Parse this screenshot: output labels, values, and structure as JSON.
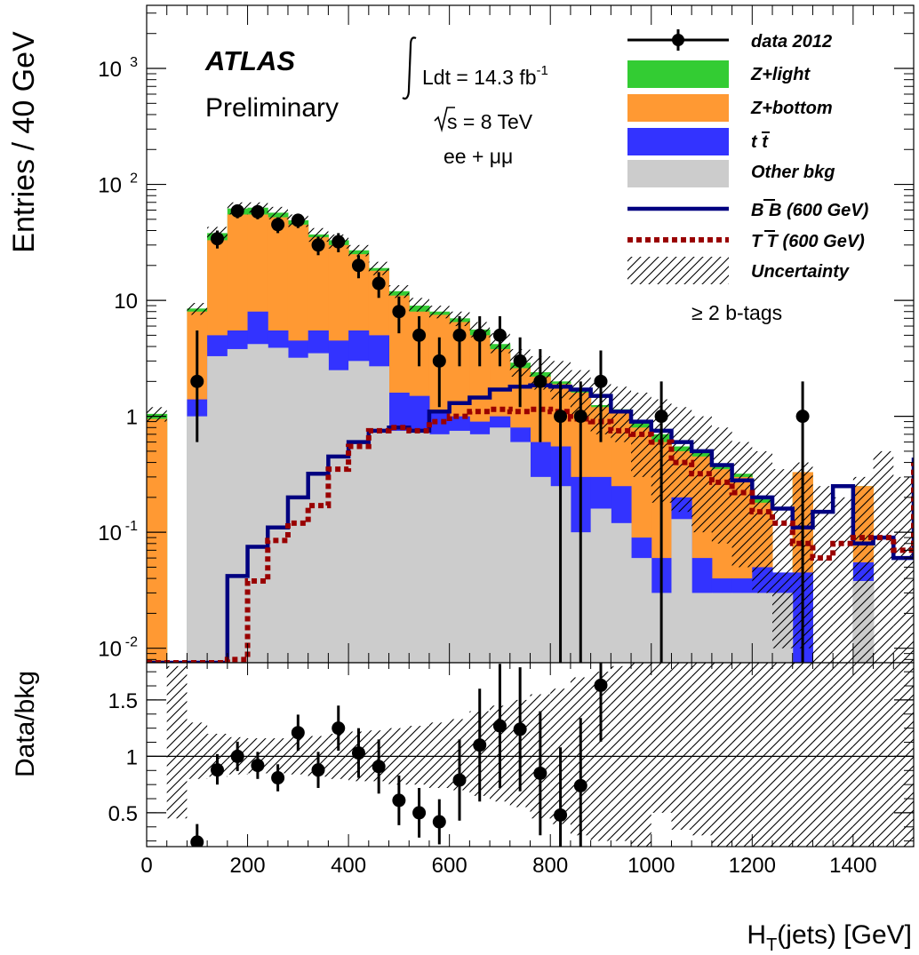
{
  "chart_data": [
    {
      "type": "stacked-histogram",
      "log_y": true,
      "ylabel": "Entries / 40 GeV",
      "ylim": [
        0.0075,
        3500
      ],
      "xlim": [
        0,
        1520
      ],
      "y_ticks": [
        {
          "v": 0.01,
          "b": "10",
          "e": "-2"
        },
        {
          "v": 0.1,
          "b": "10",
          "e": "-1"
        },
        {
          "v": 1,
          "b": "1",
          "e": ""
        },
        {
          "v": 10,
          "b": "10",
          "e": ""
        },
        {
          "v": 100,
          "b": "10",
          "e": "2"
        },
        {
          "v": 1000,
          "b": "10",
          "e": "3"
        }
      ],
      "bin_edges": [
        0,
        40,
        80,
        120,
        160,
        200,
        240,
        280,
        320,
        360,
        400,
        440,
        480,
        520,
        560,
        600,
        640,
        680,
        720,
        760,
        800,
        840,
        880,
        920,
        960,
        1000,
        1040,
        1080,
        1120,
        1160,
        1200,
        1240,
        1280,
        1320,
        1360,
        1400,
        1440,
        1480,
        1520
      ],
      "stack": [
        {
          "name": "Other bkg",
          "color": "#cccccc",
          "values": [
            0.001,
            0.001,
            1,
            3.3,
            3.8,
            4.2,
            3.9,
            3.2,
            3.5,
            2.5,
            3.0,
            2.7,
            0.75,
            0.75,
            0.7,
            0.75,
            0.7,
            0.8,
            0.6,
            0.3,
            0.25,
            0.1,
            0.16,
            0.12,
            0.06,
            0.03,
            0.13,
            0.03,
            0.03,
            0.03,
            0.03,
            0.03,
            0.001,
            0.001,
            0.001,
            0.038,
            0.001,
            0.001,
            0.013
          ]
        },
        {
          "name": "tt",
          "color": "#3333ff",
          "values": [
            0.001,
            0.001,
            1.4,
            5.0,
            5.5,
            8.0,
            5.5,
            4.5,
            5.5,
            4.5,
            5.5,
            5.0,
            1.6,
            1.5,
            1.1,
            1.0,
            0.9,
            1.0,
            0.8,
            0.6,
            0.55,
            0.3,
            0.3,
            0.25,
            0.09,
            0.06,
            0.2,
            0.06,
            0.04,
            0.04,
            0.05,
            0.045,
            0.045,
            0.001,
            0.001,
            0.055,
            0.001,
            0.001,
            0.45
          ]
        },
        {
          "name": "Z+bottom",
          "color": "#ff9933",
          "values": [
            0.95,
            0.001,
            8.0,
            33,
            55,
            55,
            52,
            45,
            35,
            30,
            25,
            18,
            11,
            8,
            7.5,
            6.5,
            5.0,
            3.8,
            2.6,
            2.2,
            1.9,
            1.6,
            1.2,
            1.1,
            0.8,
            0.6,
            0.5,
            0.45,
            0.35,
            0.3,
            0.18,
            0.001,
            0.33,
            0.001,
            0.001,
            0.25,
            0.001,
            0.001,
            0.8
          ]
        },
        {
          "name": "Z+light",
          "color": "#33cc33",
          "values": [
            1.05,
            0.001,
            8.5,
            38,
            62,
            63,
            57,
            49,
            37,
            33,
            27,
            19,
            12,
            9,
            8,
            7,
            5.6,
            4.2,
            2.9,
            2.4,
            2.0,
            1.7,
            1.25,
            1.15,
            0.92,
            0.7,
            0.55,
            0.5,
            0.38,
            0.32,
            0.2,
            0.001,
            0.33,
            0.001,
            0.001,
            0.25,
            0.001,
            0.001,
            0.95
          ]
        }
      ],
      "series": [
        {
          "name": "data 2012",
          "type": "points",
          "x": [
            100,
            140,
            180,
            220,
            260,
            300,
            340,
            380,
            420,
            460,
            500,
            540,
            580,
            620,
            660,
            700,
            740,
            780,
            820,
            860,
            900,
            1020,
            1300
          ],
          "y": [
            2,
            34,
            59,
            58,
            45,
            49,
            30,
            32,
            20,
            14,
            8,
            5,
            3,
            5,
            5,
            5,
            3,
            2,
            1,
            1,
            2,
            1,
            1
          ],
          "err": [
            [
              1.4,
              3.5
            ],
            [
              6,
              6
            ],
            [
              8,
              8
            ],
            [
              8,
              8
            ],
            [
              7,
              7
            ],
            [
              7,
              7
            ],
            [
              5.5,
              5.5
            ],
            [
              6,
              6
            ],
            [
              4.5,
              4.5
            ],
            [
              3.5,
              3.5
            ],
            [
              2.8,
              2.8
            ],
            [
              2.3,
              2.3
            ],
            [
              1.8,
              1.8
            ],
            [
              2.3,
              2.3
            ],
            [
              2.3,
              2.3
            ],
            [
              2.3,
              2.3
            ],
            [
              1.8,
              1.8
            ],
            [
              1.4,
              1.8
            ],
            [
              1,
              1
            ],
            [
              1,
              1
            ],
            [
              1.4,
              1.7
            ],
            [
              1,
              1
            ],
            [
              1,
              1
            ]
          ]
        },
        {
          "name": "BB (600 GeV)",
          "type": "step",
          "color": "#000080",
          "values": [
            0.0075,
            0.0075,
            0.0075,
            0.0075,
            0.042,
            0.075,
            0.11,
            0.2,
            0.32,
            0.45,
            0.6,
            0.75,
            0.8,
            0.75,
            1.1,
            1.3,
            1.45,
            1.7,
            1.8,
            1.85,
            1.8,
            1.7,
            1.5,
            1.1,
            0.9,
            0.75,
            0.6,
            0.5,
            0.38,
            0.28,
            0.2,
            0.16,
            0.11,
            0.15,
            0.25,
            0.08,
            0.09,
            0.06,
            0.44
          ]
        },
        {
          "name": "TT (600 GeV)",
          "type": "dotted-step",
          "color": "#990000",
          "values": [
            0.0075,
            0.0075,
            0.0075,
            0.0075,
            0.008,
            0.038,
            0.085,
            0.12,
            0.17,
            0.35,
            0.55,
            0.75,
            0.8,
            0.75,
            0.9,
            1.0,
            1.1,
            1.15,
            1.1,
            1.15,
            1.1,
            0.95,
            0.9,
            0.75,
            0.7,
            0.6,
            0.4,
            0.32,
            0.27,
            0.22,
            0.15,
            0.12,
            0.08,
            0.06,
            0.08,
            0.09,
            0.09,
            0.07,
            0.4
          ]
        }
      ],
      "uncertainty": {
        "name": "Uncertainty",
        "lo": [
          0.9,
          0.001,
          7.5,
          34,
          55,
          57,
          50,
          43,
          32,
          28,
          24,
          16.5,
          10.5,
          8,
          7,
          6,
          4.8,
          3.5,
          2.2,
          1.7,
          1.4,
          1.0,
          0.7,
          0.6,
          0.3,
          0.18,
          0.15,
          0.1,
          0.08,
          0.05,
          0.03,
          0.01,
          0.01,
          0.007,
          0.007,
          0.007,
          0.007,
          0.007,
          0.007
        ],
        "hi": [
          1.2,
          0.001,
          9.5,
          43,
          70,
          70,
          64,
          55,
          42,
          37,
          30,
          21.5,
          13.5,
          10.5,
          9,
          8,
          6.5,
          5.2,
          3.8,
          3.3,
          3.0,
          2.5,
          2.0,
          1.8,
          1.6,
          1.4,
          1.2,
          1.0,
          0.8,
          0.6,
          0.5,
          0.35,
          0.4,
          0.25,
          0.2,
          0.3,
          0.5,
          0.3,
          1.3
        ]
      },
      "legend": {
        "placement": "top-right",
        "entries": [
          {
            "label": "data 2012",
            "kind": "marker"
          },
          {
            "label": "Z+light",
            "kind": "fill",
            "color": "#33cc33"
          },
          {
            "label": "Z+bottom",
            "kind": "fill",
            "color": "#ff9933"
          },
          {
            "label": "tt",
            "kind": "fill",
            "color": "#3333ff",
            "overbar": true
          },
          {
            "label": "Other bkg",
            "kind": "fill",
            "color": "#cccccc"
          },
          {
            "label": "BB (600 GeV)",
            "kind": "line",
            "color": "#000080",
            "overbar": true
          },
          {
            "label": "TT (600 GeV)",
            "kind": "dotted",
            "color": "#990000",
            "overbar": true
          },
          {
            "label": "Uncertainty",
            "kind": "hatch"
          }
        ]
      }
    },
    {
      "type": "scatter",
      "ylabel": "Data/bkg",
      "xlabel": "H_T(jets) [GeV]",
      "ylim": [
        0.2,
        1.83
      ],
      "xlim": [
        0,
        1520
      ],
      "x_ticks": [
        0,
        200,
        400,
        600,
        800,
        1000,
        1200,
        1400
      ],
      "y_ticks": [
        0.5,
        1,
        1.5
      ],
      "reference_line": 1,
      "x": [
        100,
        140,
        180,
        220,
        260,
        300,
        340,
        380,
        420,
        460,
        500,
        540,
        580,
        620,
        660,
        700,
        740,
        780,
        820,
        860,
        900
      ],
      "y": [
        0.24,
        0.88,
        1.0,
        0.92,
        0.81,
        1.21,
        0.88,
        1.25,
        1.03,
        0.91,
        0.61,
        0.5,
        0.42,
        0.79,
        1.1,
        1.27,
        1.24,
        0.85,
        0.48,
        0.74,
        1.63
      ],
      "err": [
        [
          0.05,
          0.16
        ],
        [
          0.13,
          0.14
        ],
        [
          0.13,
          0.13
        ],
        [
          0.12,
          0.12
        ],
        [
          0.12,
          0.12
        ],
        [
          0.16,
          0.16
        ],
        [
          0.16,
          0.16
        ],
        [
          0.2,
          0.2
        ],
        [
          0.22,
          0.22
        ],
        [
          0.24,
          0.24
        ],
        [
          0.22,
          0.22
        ],
        [
          0.22,
          0.22
        ],
        [
          0.2,
          0.2
        ],
        [
          0.36,
          0.36
        ],
        [
          0.5,
          0.5
        ],
        [
          0.55,
          0.55
        ],
        [
          0.55,
          0.55
        ],
        [
          0.55,
          0.55
        ],
        [
          0.48,
          0.6
        ],
        [
          0.54,
          0.6
        ],
        [
          0.5,
          0.7
        ]
      ],
      "uncertainty_band": {
        "lo": [
          1,
          0.45,
          0.8,
          0.82,
          0.84,
          0.85,
          0.85,
          0.84,
          0.82,
          0.8,
          0.78,
          0.78,
          0.75,
          0.75,
          0.72,
          0.7,
          0.65,
          0.6,
          0.55,
          0.45,
          0.4,
          0.3,
          0.25,
          0.25,
          0.2,
          0.5,
          0.35,
          0.3,
          0.2,
          0.2,
          0.2,
          0.2,
          0.2,
          0.2,
          0.2,
          0.2,
          0.2,
          0.2,
          0.2
        ],
        "hi": [
          1,
          1.8,
          1.3,
          1.2,
          1.17,
          1.16,
          1.16,
          1.17,
          1.18,
          1.2,
          1.22,
          1.23,
          1.25,
          1.27,
          1.3,
          1.33,
          1.4,
          1.45,
          1.5,
          1.55,
          1.6,
          1.7,
          1.75,
          1.8,
          1.83,
          1.83,
          1.83,
          1.83,
          1.83,
          1.83,
          1.83,
          1.83,
          1.83,
          1.83,
          1.83,
          1.83,
          1.83,
          1.83,
          1.83
        ]
      }
    }
  ],
  "annotations": {
    "experiment": "ATLAS",
    "status": "Preliminary",
    "lumi_prefix": "Ldt = 14.3 fb",
    "lumi_exp": "-1",
    "energy": "s = 8 TeV",
    "channel": "ee + μμ",
    "btag": "≥ 2 b-tags"
  },
  "legend_labels": {
    "data": "data 2012",
    "zlight": "Z+light",
    "zbottom": "Z+bottom",
    "ttbar": "t t",
    "other": "Other bkg",
    "bb": "B B (600 GeV)",
    "tt": "T T (600 GeV)",
    "unc": "Uncertainty"
  },
  "axes": {
    "main_ylabel": "Entries / 40 GeV",
    "ratio_ylabel": "Data/bkg",
    "xlabel_main": "H",
    "xlabel_sub": "T",
    "xlabel_rest": "(jets) [GeV]"
  }
}
